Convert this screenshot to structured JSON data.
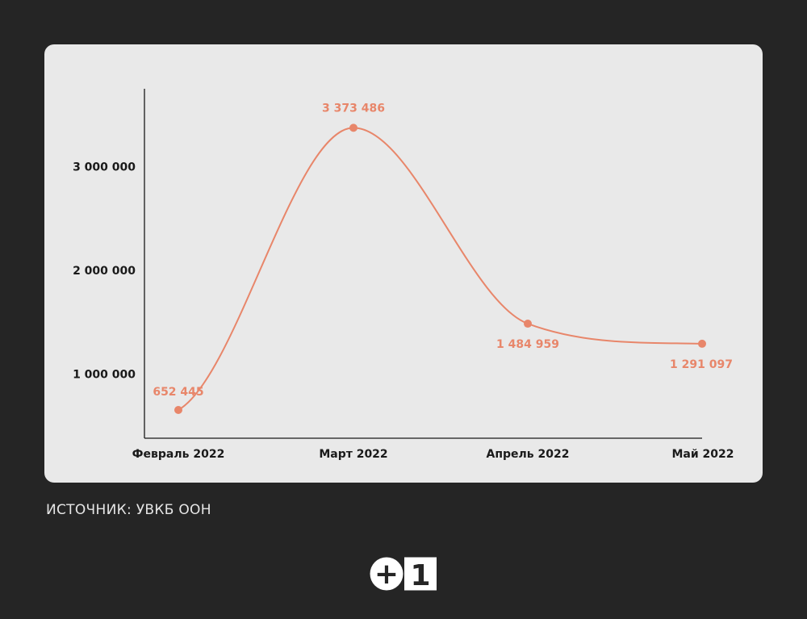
{
  "chart_data": {
    "type": "line",
    "categories": [
      "Февраль 2022",
      "Март 2022",
      "Апрель 2022",
      "Май 2022"
    ],
    "values": [
      652445,
      3373486,
      1484959,
      1291097
    ],
    "value_labels": [
      "652 445",
      "3 373 486",
      "1 484 959",
      "1 291 097"
    ],
    "y_ticks": [
      1000000,
      2000000,
      3000000
    ],
    "y_tick_labels": [
      "1 000 000",
      "2 000 000",
      "3 000 000"
    ],
    "ylim": [
      380000,
      3750000
    ],
    "title": "",
    "xlabel": "",
    "ylabel": "",
    "grid": false,
    "smooth": true,
    "line_color": "#e8866a",
    "label_color": "#e8866a",
    "axis_color": "#1a1a1a"
  },
  "source": {
    "text": "ИСТОЧНИК: УВКБ ООН"
  },
  "logo": {
    "plus": "+",
    "digit": "1"
  },
  "colors": {
    "background": "#252525",
    "card": "#e9e9e9"
  }
}
